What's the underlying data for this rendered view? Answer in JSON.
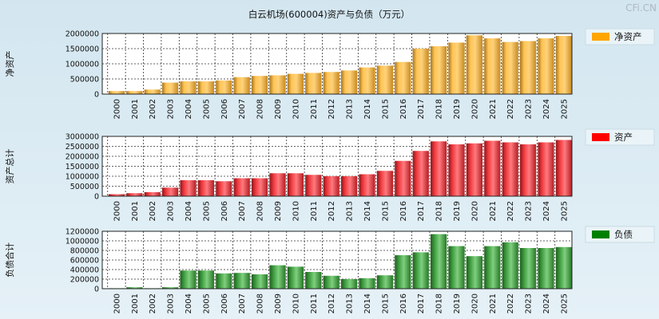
{
  "page": {
    "title": "白云机场(600004)资产与负债（万元）",
    "watermark": "CFi.CN"
  },
  "chart_data": [
    {
      "type": "bar",
      "ylabel": "净资产",
      "legend": "净资产",
      "legend_color": "#ffa500",
      "ylim": [
        0,
        2000000
      ],
      "yticks": [
        0,
        500000,
        1000000,
        1500000,
        2000000
      ],
      "categories": [
        "2000",
        "2001",
        "2002",
        "2003",
        "2004",
        "2005",
        "2006",
        "2007",
        "2008",
        "2009",
        "2010",
        "2011",
        "2012",
        "2013",
        "2014",
        "2015",
        "2016",
        "2017",
        "2018",
        "2019",
        "2020",
        "2021",
        "2022",
        "2023",
        "2024",
        "2025"
      ],
      "values": [
        100000,
        100000,
        150000,
        380000,
        420000,
        420000,
        450000,
        560000,
        600000,
        620000,
        670000,
        700000,
        730000,
        780000,
        880000,
        940000,
        1060000,
        1500000,
        1580000,
        1700000,
        1940000,
        1840000,
        1720000,
        1750000,
        1840000,
        1920000
      ]
    },
    {
      "type": "bar",
      "ylabel": "资产总计",
      "legend": "资产",
      "legend_color": "#ff0000",
      "ylim": [
        0,
        3000000
      ],
      "yticks": [
        0,
        500000,
        1000000,
        1500000,
        2000000,
        2500000,
        3000000
      ],
      "categories": [
        "2000",
        "2001",
        "2002",
        "2003",
        "2004",
        "2005",
        "2006",
        "2007",
        "2008",
        "2009",
        "2010",
        "2011",
        "2012",
        "2013",
        "2014",
        "2015",
        "2016",
        "2017",
        "2018",
        "2019",
        "2020",
        "2021",
        "2022",
        "2023",
        "2024",
        "2025"
      ],
      "values": [
        100000,
        150000,
        200000,
        430000,
        800000,
        800000,
        750000,
        900000,
        900000,
        1150000,
        1150000,
        1070000,
        1000000,
        1000000,
        1100000,
        1270000,
        1770000,
        2270000,
        2750000,
        2600000,
        2650000,
        2780000,
        2700000,
        2600000,
        2700000,
        2820000
      ]
    },
    {
      "type": "bar",
      "ylabel": "负债合计",
      "legend": "负债",
      "legend_color": "#008000",
      "ylim": [
        0,
        1200000
      ],
      "yticks": [
        0,
        200000,
        400000,
        600000,
        800000,
        1000000,
        1200000
      ],
      "categories": [
        "2000",
        "2001",
        "2002",
        "2003",
        "2004",
        "2005",
        "2006",
        "2007",
        "2008",
        "2009",
        "2010",
        "2011",
        "2012",
        "2013",
        "2014",
        "2015",
        "2016",
        "2017",
        "2018",
        "2019",
        "2020",
        "2021",
        "2022",
        "2023",
        "2024",
        "2025"
      ],
      "values": [
        10000,
        30000,
        10000,
        30000,
        380000,
        380000,
        320000,
        330000,
        300000,
        490000,
        460000,
        350000,
        270000,
        200000,
        220000,
        280000,
        700000,
        760000,
        1140000,
        890000,
        680000,
        890000,
        970000,
        850000,
        850000,
        870000
      ]
    }
  ]
}
